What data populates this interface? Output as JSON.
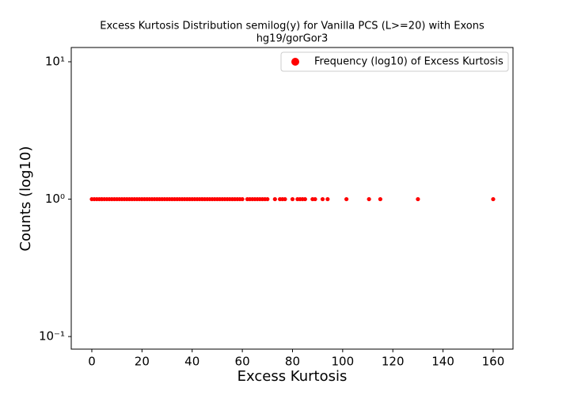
{
  "chart_data": {
    "type": "scatter",
    "title": "Excess Kurtosis Distribution semilog(y) for Vanilla PCS (L>=20) with Exons",
    "subtitle": "hg19/gorGor3",
    "xlabel": "Excess Kurtosis",
    "ylabel": "Counts (log10)",
    "xlim": [
      -8.2,
      167.9
    ],
    "ylim": [
      0.081,
      12.7
    ],
    "yscale": "log",
    "xticks": [
      0,
      20,
      40,
      60,
      80,
      100,
      120,
      140,
      160
    ],
    "yticks": [
      {
        "value": 0.1,
        "label": "10⁻¹"
      },
      {
        "value": 1,
        "label": "10⁰"
      },
      {
        "value": 10,
        "label": "10¹"
      }
    ],
    "legend": "upper right",
    "series": [
      {
        "name": "Frequency (log10) of Excess Kurtosis",
        "color": "#ff0000",
        "x": [
          0,
          1,
          2,
          3,
          4,
          5,
          6,
          7,
          8,
          9,
          10,
          11,
          12,
          13,
          14,
          15,
          16,
          17,
          18,
          19,
          20,
          21,
          22,
          23,
          24,
          25,
          26,
          27,
          28,
          29,
          30,
          31,
          32,
          33,
          34,
          35,
          36,
          37,
          38,
          39,
          40,
          41,
          42,
          43,
          44,
          45,
          46,
          47,
          48,
          49,
          50,
          51,
          52,
          53,
          54,
          55,
          56,
          57,
          58,
          59,
          60,
          62,
          63,
          64,
          65,
          66,
          67,
          68,
          69,
          70,
          73,
          75,
          76,
          77,
          80,
          82,
          83,
          84,
          85,
          88,
          89,
          92,
          94,
          101.5,
          110.5,
          115,
          130,
          160
        ],
        "values": [
          1,
          1,
          1,
          1,
          1,
          1,
          1,
          1,
          1,
          1,
          1,
          1,
          1,
          1,
          1,
          1,
          1,
          1,
          1,
          1,
          1,
          1,
          1,
          1,
          1,
          1,
          1,
          1,
          1,
          1,
          1,
          1,
          1,
          1,
          1,
          1,
          1,
          1,
          1,
          1,
          1,
          1,
          1,
          1,
          1,
          1,
          1,
          1,
          1,
          1,
          1,
          1,
          1,
          1,
          1,
          1,
          1,
          1,
          1,
          1,
          1,
          1,
          1,
          1,
          1,
          1,
          1,
          1,
          1,
          1,
          1,
          1,
          1,
          1,
          1,
          1,
          1,
          1,
          1,
          1,
          1,
          1,
          1,
          1,
          1,
          1,
          1,
          1
        ]
      }
    ]
  }
}
